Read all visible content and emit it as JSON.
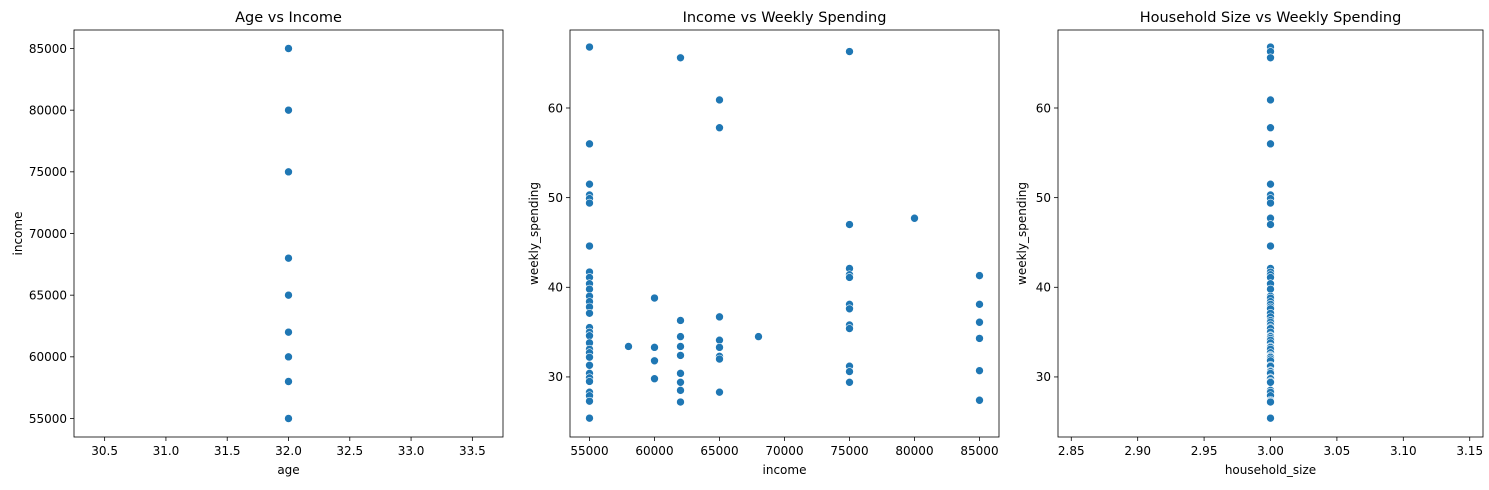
{
  "chart_data": [
    {
      "type": "scatter",
      "title": "Age vs Income",
      "xlabel": "age",
      "ylabel": "income",
      "xlim": [
        30.25,
        33.75
      ],
      "ylim": [
        53500,
        86500
      ],
      "xticks": [
        30.5,
        31.0,
        31.5,
        32.0,
        32.5,
        33.0,
        33.5
      ],
      "xtick_labels": [
        "30.5",
        "31.0",
        "31.5",
        "32.0",
        "32.5",
        "33.0",
        "33.5"
      ],
      "yticks": [
        55000,
        60000,
        65000,
        70000,
        75000,
        80000,
        85000
      ],
      "ytick_labels": [
        "55000",
        "60000",
        "65000",
        "70000",
        "75000",
        "80000",
        "85000"
      ],
      "grid": false,
      "color": "#1f77b4",
      "points": [
        [
          32,
          55000
        ],
        [
          32,
          58000
        ],
        [
          32,
          60000
        ],
        [
          32,
          62000
        ],
        [
          32,
          65000
        ],
        [
          32,
          68000
        ],
        [
          32,
          75000
        ],
        [
          32,
          80000
        ],
        [
          32,
          85000
        ]
      ]
    },
    {
      "type": "scatter",
      "title": "Income vs Weekly Spending",
      "xlabel": "income",
      "ylabel": "weekly_spending",
      "xlim": [
        53500,
        86500
      ],
      "ylim": [
        23.3,
        68.7
      ],
      "xticks": [
        55000,
        60000,
        65000,
        70000,
        75000,
        80000,
        85000
      ],
      "xtick_labels": [
        "55000",
        "60000",
        "65000",
        "70000",
        "75000",
        "80000",
        "85000"
      ],
      "yticks": [
        30,
        40,
        50,
        60
      ],
      "ytick_labels": [
        "30",
        "40",
        "50",
        "60"
      ],
      "grid": false,
      "color": "#1f77b4",
      "points": [
        [
          55000,
          66.8
        ],
        [
          55000,
          56.0
        ],
        [
          55000,
          51.5
        ],
        [
          55000,
          50.3
        ],
        [
          55000,
          49.9
        ],
        [
          55000,
          49.4
        ],
        [
          55000,
          44.6
        ],
        [
          55000,
          41.7
        ],
        [
          55000,
          41.1
        ],
        [
          55000,
          40.4
        ],
        [
          55000,
          39.8
        ],
        [
          55000,
          39.0
        ],
        [
          55000,
          38.4
        ],
        [
          55000,
          37.8
        ],
        [
          55000,
          37.1
        ],
        [
          55000,
          35.5
        ],
        [
          55000,
          35.0
        ],
        [
          55000,
          34.6
        ],
        [
          55000,
          33.8
        ],
        [
          55000,
          33.1
        ],
        [
          55000,
          32.7
        ],
        [
          55000,
          32.2
        ],
        [
          55000,
          31.3
        ],
        [
          55000,
          30.4
        ],
        [
          55000,
          29.9
        ],
        [
          55000,
          29.5
        ],
        [
          55000,
          28.3
        ],
        [
          55000,
          27.9
        ],
        [
          55000,
          27.3
        ],
        [
          55000,
          25.4
        ],
        [
          58000,
          33.4
        ],
        [
          60000,
          38.8
        ],
        [
          60000,
          33.3
        ],
        [
          60000,
          31.8
        ],
        [
          60000,
          29.8
        ],
        [
          62000,
          65.6
        ],
        [
          62000,
          36.3
        ],
        [
          62000,
          34.5
        ],
        [
          62000,
          33.4
        ],
        [
          62000,
          32.4
        ],
        [
          62000,
          30.4
        ],
        [
          62000,
          29.4
        ],
        [
          62000,
          28.5
        ],
        [
          62000,
          27.2
        ],
        [
          65000,
          60.9
        ],
        [
          65000,
          57.8
        ],
        [
          65000,
          36.7
        ],
        [
          65000,
          34.1
        ],
        [
          65000,
          33.3
        ],
        [
          65000,
          32.3
        ],
        [
          65000,
          32.0
        ],
        [
          65000,
          28.3
        ],
        [
          68000,
          34.5
        ],
        [
          75000,
          66.3
        ],
        [
          75000,
          47.0
        ],
        [
          75000,
          42.1
        ],
        [
          75000,
          41.4
        ],
        [
          75000,
          41.1
        ],
        [
          75000,
          38.1
        ],
        [
          75000,
          37.6
        ],
        [
          75000,
          35.8
        ],
        [
          75000,
          35.4
        ],
        [
          75000,
          31.2
        ],
        [
          75000,
          30.6
        ],
        [
          75000,
          29.4
        ],
        [
          80000,
          47.7
        ],
        [
          85000,
          41.3
        ],
        [
          85000,
          38.1
        ],
        [
          85000,
          36.1
        ],
        [
          85000,
          34.3
        ],
        [
          85000,
          30.7
        ],
        [
          85000,
          27.4
        ]
      ]
    },
    {
      "type": "scatter",
      "title": "Household Size vs Weekly Spending",
      "xlabel": "household_size",
      "ylabel": "weekly_spending",
      "xlim": [
        2.84,
        3.16
      ],
      "ylim": [
        23.3,
        68.7
      ],
      "xticks": [
        2.85,
        2.9,
        2.95,
        3.0,
        3.05,
        3.1,
        3.15
      ],
      "xtick_labels": [
        "2.85",
        "2.90",
        "2.95",
        "3.00",
        "3.05",
        "3.10",
        "3.15"
      ],
      "yticks": [
        30,
        40,
        50,
        60
      ],
      "ytick_labels": [
        "30",
        "40",
        "50",
        "60"
      ],
      "grid": false,
      "color": "#1f77b4",
      "points": [
        [
          3,
          66.8
        ],
        [
          3,
          66.3
        ],
        [
          3,
          65.6
        ],
        [
          3,
          60.9
        ],
        [
          3,
          57.8
        ],
        [
          3,
          56.0
        ],
        [
          3,
          51.5
        ],
        [
          3,
          50.3
        ],
        [
          3,
          49.9
        ],
        [
          3,
          49.4
        ],
        [
          3,
          47.7
        ],
        [
          3,
          47.0
        ],
        [
          3,
          44.6
        ],
        [
          3,
          42.1
        ],
        [
          3,
          41.7
        ],
        [
          3,
          41.4
        ],
        [
          3,
          41.1
        ],
        [
          3,
          40.4
        ],
        [
          3,
          39.8
        ],
        [
          3,
          39.0
        ],
        [
          3,
          38.8
        ],
        [
          3,
          38.4
        ],
        [
          3,
          38.1
        ],
        [
          3,
          37.8
        ],
        [
          3,
          37.6
        ],
        [
          3,
          37.1
        ],
        [
          3,
          36.7
        ],
        [
          3,
          36.3
        ],
        [
          3,
          36.1
        ],
        [
          3,
          35.8
        ],
        [
          3,
          35.5
        ],
        [
          3,
          35.4
        ],
        [
          3,
          35.0
        ],
        [
          3,
          34.6
        ],
        [
          3,
          34.5
        ],
        [
          3,
          34.3
        ],
        [
          3,
          34.1
        ],
        [
          3,
          33.8
        ],
        [
          3,
          33.4
        ],
        [
          3,
          33.3
        ],
        [
          3,
          33.1
        ],
        [
          3,
          32.7
        ],
        [
          3,
          32.4
        ],
        [
          3,
          32.3
        ],
        [
          3,
          32.2
        ],
        [
          3,
          32.0
        ],
        [
          3,
          31.8
        ],
        [
          3,
          31.3
        ],
        [
          3,
          31.2
        ],
        [
          3,
          30.7
        ],
        [
          3,
          30.6
        ],
        [
          3,
          30.4
        ],
        [
          3,
          29.9
        ],
        [
          3,
          29.8
        ],
        [
          3,
          29.5
        ],
        [
          3,
          29.4
        ],
        [
          3,
          28.5
        ],
        [
          3,
          28.3
        ],
        [
          3,
          27.9
        ],
        [
          3,
          27.4
        ],
        [
          3,
          27.3
        ],
        [
          3,
          27.2
        ],
        [
          3,
          25.4
        ]
      ]
    }
  ]
}
